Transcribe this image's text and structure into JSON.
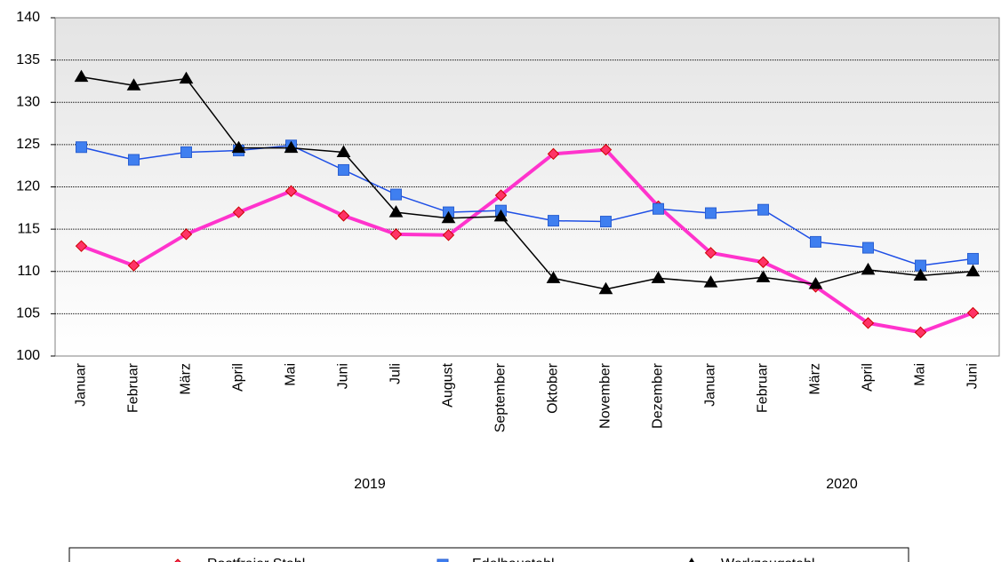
{
  "chart_data": {
    "type": "line",
    "categories": [
      "Januar",
      "Februar",
      "März",
      "April",
      "Mai",
      "Juni",
      "Juli",
      "August",
      "September",
      "Oktober",
      "November",
      "Dezember",
      "Januar",
      "Februar",
      "März",
      "April",
      "Mai",
      "Juni"
    ],
    "groups": [
      {
        "label": "2019",
        "count": 12
      },
      {
        "label": "2020",
        "count": 6
      }
    ],
    "series": [
      {
        "name": "Rostfreier Stahl",
        "color": "#ff33cc",
        "marker": "diamond",
        "marker_color": "#ff3366",
        "marker_stroke": "#cc0000",
        "width": 4,
        "values": [
          113.0,
          110.7,
          114.4,
          117.0,
          119.5,
          116.6,
          114.4,
          114.3,
          119.0,
          123.9,
          124.4,
          117.7,
          112.2,
          111.1,
          108.2,
          103.9,
          102.8,
          105.1
        ]
      },
      {
        "name": "Edelbaustahl",
        "color": "#1e4fe6",
        "marker": "square",
        "marker_color": "#3f7ff0",
        "marker_stroke": "#2a5fd0",
        "width": 1.5,
        "values": [
          124.7,
          123.2,
          124.1,
          124.3,
          124.9,
          122.0,
          119.1,
          117.0,
          117.2,
          116.0,
          115.9,
          117.4,
          116.9,
          117.3,
          113.5,
          112.8,
          110.7,
          111.5
        ]
      },
      {
        "name": "Werkzeugstahl",
        "color": "#000000",
        "marker": "triangle",
        "marker_color": "#000000",
        "marker_stroke": "#000000",
        "width": 1.5,
        "values": [
          133.0,
          132.0,
          132.8,
          124.6,
          124.6,
          124.1,
          117.0,
          116.3,
          116.5,
          109.2,
          107.9,
          109.2,
          108.7,
          109.3,
          108.5,
          110.2,
          109.5,
          110.0
        ]
      }
    ],
    "ylim": [
      100,
      140
    ],
    "yticks": [
      100,
      105,
      110,
      115,
      120,
      125,
      130,
      135,
      140
    ],
    "grid": true,
    "legend": "bottom"
  }
}
